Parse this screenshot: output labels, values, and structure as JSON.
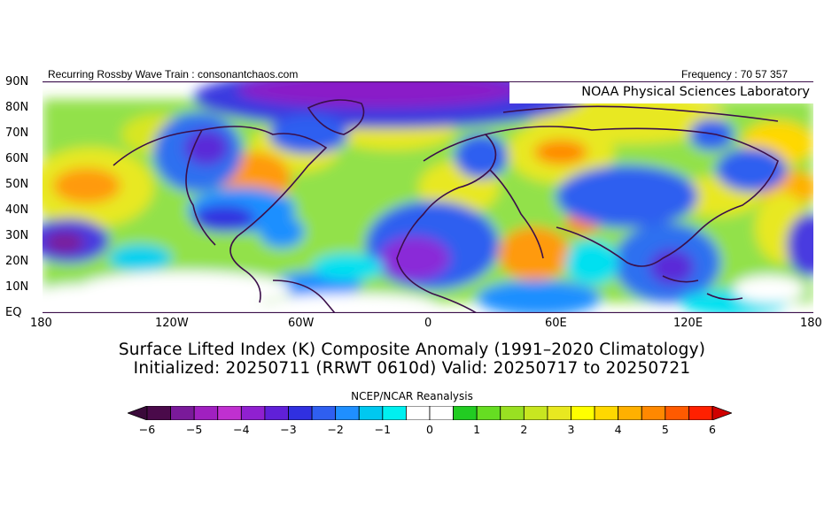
{
  "header": {
    "left_text": "Recurring Rossby Wave Train : consonantchaos.com",
    "right_text": "Frequency : 70 57 357",
    "lab_text": "NOAA Physical Sciences Laboratory"
  },
  "axes": {
    "lat_labels": [
      "90N",
      "80N",
      "70N",
      "60N",
      "50N",
      "40N",
      "30N",
      "20N",
      "10N",
      "EQ"
    ],
    "lon_labels": [
      "180",
      "120W",
      "60W",
      "0",
      "60E",
      "120E",
      "180"
    ]
  },
  "title": {
    "line1": "Surface Lifted Index (K) Composite Anomaly (1991–2020 Climatology)",
    "line2": "Initialized: 20250711 (RRWT 0610d) Valid: 20250717 to 20250721"
  },
  "colorbar": {
    "title": "NCEP/NCAR Reanalysis",
    "labels": [
      "−6",
      "−5",
      "−4",
      "−3",
      "−2",
      "−1",
      "0",
      "1",
      "2",
      "3",
      "4",
      "5",
      "6"
    ],
    "colors": [
      "#4a0a4a",
      "#7a1a9a",
      "#a020c0",
      "#c030d0",
      "#9020d0",
      "#6020d8",
      "#3030e0",
      "#2f5ff0",
      "#1f8fff",
      "#00c8f0",
      "#00f0f0",
      "#ffffff",
      "#ffffff",
      "#22cc22",
      "#66dd22",
      "#99e022",
      "#c8e620",
      "#e8e820",
      "#ffff00",
      "#ffd800",
      "#ffb000",
      "#ff8800",
      "#ff5a00",
      "#ff2000"
    ]
  }
}
